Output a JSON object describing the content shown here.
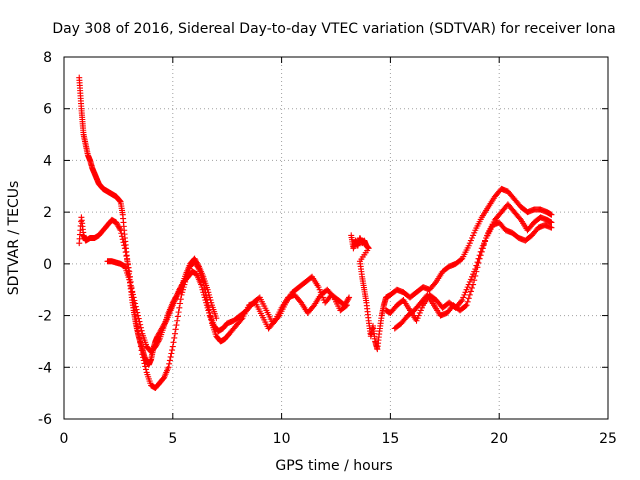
{
  "chart_data": {
    "type": "scatter",
    "title": "Day 308 of 2016, Sidereal Day-to-day VTEC variation (SDTVAR) for receiver Iona",
    "xlabel": "GPS time / hours",
    "ylabel": "SDTVAR / TECUs",
    "xlim": [
      0,
      25
    ],
    "ylim": [
      -6,
      8
    ],
    "x_ticks": [
      0,
      5,
      10,
      15,
      20,
      25
    ],
    "y_ticks": [
      -6,
      -4,
      -2,
      0,
      2,
      4,
      6,
      8
    ],
    "grid": true,
    "marker": "+",
    "color": "#ff0000",
    "series": [
      {
        "name": "s1",
        "points": [
          [
            0.7,
            7.2
          ],
          [
            0.75,
            6.6
          ],
          [
            0.8,
            6.0
          ],
          [
            0.85,
            5.5
          ],
          [
            0.9,
            5.0
          ],
          [
            1.0,
            4.6
          ],
          [
            1.1,
            4.2
          ],
          [
            1.2,
            4.0
          ],
          [
            1.3,
            3.7
          ],
          [
            1.4,
            3.5
          ],
          [
            1.5,
            3.3
          ],
          [
            1.6,
            3.1
          ],
          [
            1.7,
            3.0
          ],
          [
            1.8,
            2.9
          ],
          [
            1.9,
            2.85
          ],
          [
            2.0,
            2.8
          ],
          [
            2.1,
            2.75
          ],
          [
            2.2,
            2.7
          ],
          [
            2.3,
            2.65
          ],
          [
            2.4,
            2.6
          ],
          [
            2.5,
            2.5
          ],
          [
            2.6,
            2.4
          ],
          [
            2.7,
            1.9
          ],
          [
            2.8,
            1.0
          ],
          [
            2.9,
            0.2
          ],
          [
            3.0,
            -0.5
          ],
          [
            3.1,
            -1.2
          ],
          [
            3.2,
            -1.8
          ],
          [
            3.3,
            -2.3
          ],
          [
            3.4,
            -2.7
          ],
          [
            3.5,
            -3.0
          ],
          [
            3.6,
            -3.3
          ],
          [
            3.7,
            -3.6
          ],
          [
            3.8,
            -3.8
          ],
          [
            3.9,
            -3.9
          ],
          [
            4.0,
            -3.7
          ],
          [
            4.1,
            -3.3
          ],
          [
            4.2,
            -3.0
          ],
          [
            4.3,
            -2.8
          ],
          [
            4.5,
            -2.5
          ],
          [
            4.7,
            -2.2
          ],
          [
            4.9,
            -1.8
          ],
          [
            5.1,
            -1.4
          ],
          [
            5.3,
            -1.0
          ],
          [
            5.5,
            -0.7
          ],
          [
            5.7,
            -0.5
          ],
          [
            5.9,
            -0.3
          ],
          [
            6.1,
            -0.4
          ],
          [
            6.3,
            -0.8
          ],
          [
            6.5,
            -1.4
          ],
          [
            6.7,
            -2.0
          ],
          [
            6.9,
            -2.4
          ],
          [
            7.1,
            -2.6
          ],
          [
            7.3,
            -2.5
          ],
          [
            7.5,
            -2.3
          ],
          [
            7.8,
            -2.2
          ],
          [
            8.1,
            -2.0
          ],
          [
            8.4,
            -1.8
          ],
          [
            8.7,
            -1.5
          ],
          [
            9.0,
            -1.3
          ],
          [
            9.3,
            -1.8
          ],
          [
            9.6,
            -2.3
          ],
          [
            9.9,
            -2.0
          ],
          [
            10.2,
            -1.5
          ],
          [
            10.5,
            -1.1
          ],
          [
            10.8,
            -0.9
          ],
          [
            11.1,
            -0.7
          ],
          [
            11.4,
            -0.5
          ],
          [
            11.7,
            -0.9
          ],
          [
            12.0,
            -1.5
          ],
          [
            12.3,
            -1.2
          ],
          [
            12.6,
            -1.4
          ],
          [
            12.9,
            -1.6
          ],
          [
            13.1,
            -1.3
          ]
        ]
      },
      {
        "name": "s2",
        "points": [
          [
            0.7,
            0.8
          ],
          [
            0.8,
            1.8
          ],
          [
            0.9,
            1.1
          ],
          [
            1.0,
            0.9
          ],
          [
            1.2,
            1.0
          ],
          [
            1.4,
            1.0
          ],
          [
            1.6,
            1.1
          ],
          [
            1.8,
            1.3
          ],
          [
            2.0,
            1.5
          ],
          [
            2.2,
            1.7
          ],
          [
            2.4,
            1.6
          ],
          [
            2.6,
            1.3
          ],
          [
            2.8,
            0.6
          ],
          [
            3.0,
            -0.3
          ],
          [
            3.2,
            -1.5
          ],
          [
            3.4,
            -2.6
          ],
          [
            3.6,
            -3.5
          ],
          [
            3.8,
            -4.2
          ],
          [
            4.0,
            -4.7
          ],
          [
            4.2,
            -4.8
          ],
          [
            4.4,
            -4.6
          ],
          [
            4.6,
            -4.4
          ],
          [
            4.8,
            -4.0
          ],
          [
            5.0,
            -3.2
          ],
          [
            5.2,
            -2.2
          ],
          [
            5.4,
            -1.2
          ],
          [
            5.6,
            -0.6
          ],
          [
            5.8,
            -0.1
          ],
          [
            6.0,
            0.1
          ],
          [
            6.2,
            -0.2
          ],
          [
            6.4,
            -0.7
          ],
          [
            6.6,
            -1.5
          ],
          [
            6.8,
            -2.3
          ],
          [
            7.0,
            -2.8
          ],
          [
            7.2,
            -3.0
          ],
          [
            7.4,
            -2.9
          ],
          [
            7.6,
            -2.7
          ],
          [
            7.9,
            -2.4
          ],
          [
            8.2,
            -2.1
          ],
          [
            8.5,
            -1.6
          ],
          [
            8.8,
            -1.5
          ],
          [
            9.1,
            -2.0
          ],
          [
            9.4,
            -2.5
          ],
          [
            9.7,
            -2.2
          ],
          [
            10.0,
            -1.7
          ],
          [
            10.3,
            -1.3
          ],
          [
            10.6,
            -1.2
          ],
          [
            10.9,
            -1.5
          ],
          [
            11.2,
            -1.9
          ],
          [
            11.5,
            -1.6
          ],
          [
            11.8,
            -1.2
          ],
          [
            12.1,
            -1.0
          ],
          [
            12.4,
            -1.3
          ],
          [
            12.7,
            -1.8
          ],
          [
            13.0,
            -1.6
          ]
        ]
      },
      {
        "name": "s3",
        "points": [
          [
            2.0,
            0.1
          ],
          [
            2.2,
            0.1
          ],
          [
            2.4,
            0.05
          ],
          [
            2.6,
            0.0
          ],
          [
            2.8,
            -0.1
          ],
          [
            3.0,
            -0.6
          ],
          [
            3.2,
            -1.3
          ],
          [
            3.4,
            -2.0
          ],
          [
            3.6,
            -2.7
          ],
          [
            3.8,
            -3.2
          ],
          [
            4.0,
            -3.4
          ],
          [
            4.2,
            -3.2
          ],
          [
            4.4,
            -2.9
          ],
          [
            4.6,
            -2.4
          ],
          [
            4.8,
            -1.9
          ],
          [
            5.0,
            -1.5
          ],
          [
            5.2,
            -1.2
          ],
          [
            5.4,
            -0.9
          ],
          [
            5.6,
            -0.4
          ],
          [
            5.8,
            0.0
          ],
          [
            6.0,
            0.2
          ],
          [
            6.2,
            -0.1
          ],
          [
            6.4,
            -0.5
          ],
          [
            6.6,
            -1.0
          ],
          [
            6.8,
            -1.6
          ],
          [
            7.0,
            -2.1
          ]
        ]
      },
      {
        "name": "s4",
        "points": [
          [
            13.2,
            1.1
          ],
          [
            13.3,
            0.6
          ],
          [
            13.4,
            0.9
          ],
          [
            13.5,
            0.7
          ],
          [
            13.6,
            1.0
          ],
          [
            13.7,
            0.8
          ],
          [
            13.8,
            0.9
          ],
          [
            13.9,
            0.7
          ],
          [
            14.0,
            0.6
          ],
          [
            13.6,
            0.1
          ],
          [
            13.7,
            -0.5
          ],
          [
            13.8,
            -1.0
          ],
          [
            13.9,
            -1.5
          ],
          [
            14.0,
            -2.2
          ],
          [
            14.1,
            -2.8
          ],
          [
            14.2,
            -2.4
          ],
          [
            14.3,
            -3.0
          ],
          [
            14.4,
            -3.3
          ],
          [
            14.5,
            -2.6
          ],
          [
            14.6,
            -2.0
          ],
          [
            14.7,
            -1.6
          ],
          [
            14.8,
            -1.3
          ],
          [
            15.0,
            -1.2
          ],
          [
            15.3,
            -1.0
          ],
          [
            15.6,
            -1.1
          ],
          [
            15.9,
            -1.3
          ],
          [
            16.2,
            -1.1
          ],
          [
            16.5,
            -0.9
          ],
          [
            16.8,
            -1.0
          ],
          [
            17.1,
            -0.7
          ],
          [
            17.4,
            -0.3
          ],
          [
            17.7,
            -0.1
          ],
          [
            18.0,
            0.0
          ],
          [
            18.3,
            0.2
          ],
          [
            18.6,
            0.7
          ],
          [
            18.9,
            1.3
          ],
          [
            19.2,
            1.8
          ],
          [
            19.5,
            2.2
          ],
          [
            19.8,
            2.6
          ],
          [
            20.1,
            2.9
          ],
          [
            20.4,
            2.8
          ],
          [
            20.7,
            2.5
          ],
          [
            21.0,
            2.2
          ],
          [
            21.3,
            2.0
          ],
          [
            21.6,
            2.1
          ],
          [
            21.9,
            2.1
          ],
          [
            22.2,
            2.0
          ],
          [
            22.4,
            1.9
          ]
        ]
      },
      {
        "name": "s5",
        "points": [
          [
            14.8,
            -1.8
          ],
          [
            15.0,
            -1.9
          ],
          [
            15.3,
            -1.6
          ],
          [
            15.6,
            -1.4
          ],
          [
            15.9,
            -1.8
          ],
          [
            16.2,
            -2.2
          ],
          [
            16.5,
            -1.6
          ],
          [
            16.8,
            -1.2
          ],
          [
            17.1,
            -1.4
          ],
          [
            17.4,
            -1.7
          ],
          [
            17.7,
            -1.5
          ],
          [
            18.0,
            -1.7
          ],
          [
            18.3,
            -1.4
          ],
          [
            18.6,
            -0.8
          ],
          [
            18.9,
            -0.2
          ],
          [
            19.2,
            0.6
          ],
          [
            19.5,
            1.2
          ],
          [
            19.8,
            1.7
          ],
          [
            20.1,
            2.0
          ],
          [
            20.4,
            2.3
          ],
          [
            20.7,
            2.0
          ],
          [
            21.0,
            1.7
          ],
          [
            21.3,
            1.3
          ],
          [
            21.6,
            1.6
          ],
          [
            21.9,
            1.8
          ],
          [
            22.2,
            1.7
          ],
          [
            22.4,
            1.6
          ]
        ]
      },
      {
        "name": "s6",
        "points": [
          [
            15.2,
            -2.5
          ],
          [
            15.5,
            -2.3
          ],
          [
            15.8,
            -2.0
          ],
          [
            16.1,
            -1.8
          ],
          [
            16.4,
            -1.5
          ],
          [
            16.7,
            -1.2
          ],
          [
            17.0,
            -1.6
          ],
          [
            17.3,
            -2.0
          ],
          [
            17.6,
            -1.9
          ],
          [
            17.9,
            -1.6
          ],
          [
            18.2,
            -1.8
          ],
          [
            18.5,
            -1.6
          ],
          [
            18.8,
            -0.8
          ],
          [
            19.1,
            0.2
          ],
          [
            19.4,
            1.0
          ],
          [
            19.7,
            1.5
          ],
          [
            20.0,
            1.6
          ],
          [
            20.3,
            1.3
          ],
          [
            20.6,
            1.2
          ],
          [
            20.9,
            1.0
          ],
          [
            21.2,
            0.9
          ],
          [
            21.5,
            1.1
          ],
          [
            21.8,
            1.4
          ],
          [
            22.1,
            1.5
          ],
          [
            22.4,
            1.4
          ]
        ]
      }
    ]
  }
}
